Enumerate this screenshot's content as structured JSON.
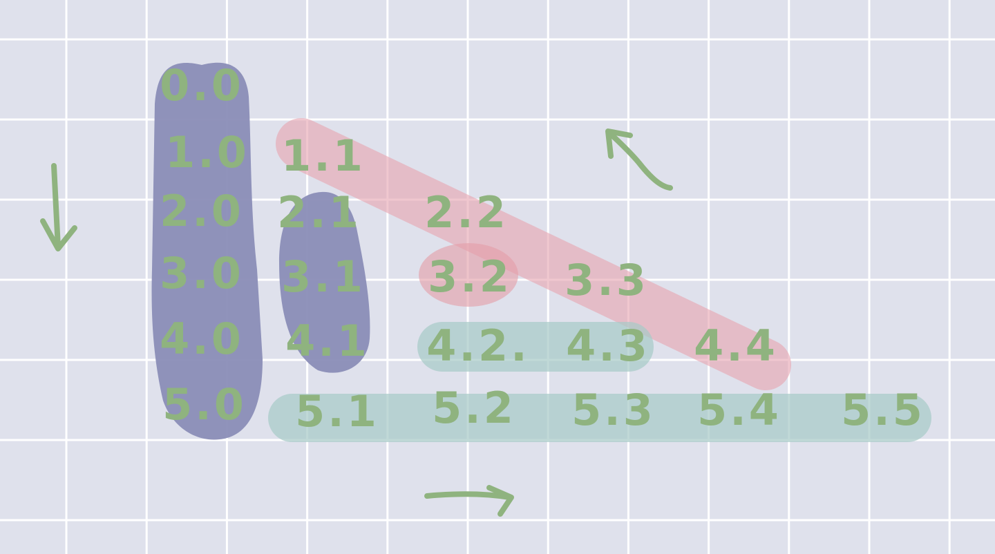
{
  "colors": {
    "background": "#dfe1ec",
    "grid": "#ffffff",
    "ink": "#8fb37f",
    "column_blob": "#8a8db7",
    "diagonal_band": "#e8a6b2",
    "row_band": "#a8cac8",
    "single_highlight": "#e49ea8"
  },
  "cells": [
    {
      "label": "0.0"
    },
    {
      "label": "1.0"
    },
    {
      "label": "1.1"
    },
    {
      "label": "2.0"
    },
    {
      "label": "2.1"
    },
    {
      "label": "2.2"
    },
    {
      "label": "3.0"
    },
    {
      "label": "3.1"
    },
    {
      "label": "3.2"
    },
    {
      "label": "3.3"
    },
    {
      "label": "4.0"
    },
    {
      "label": "4.1"
    },
    {
      "label": "4.2."
    },
    {
      "label": "4.3"
    },
    {
      "label": "4.4"
    },
    {
      "label": "5.0"
    },
    {
      "label": "5.1"
    },
    {
      "label": "5.2"
    },
    {
      "label": "5.3"
    },
    {
      "label": "5.4"
    },
    {
      "label": "5.5"
    }
  ],
  "arrows": [
    {
      "icon": "arrow-down-icon"
    },
    {
      "icon": "arrow-up-left-icon"
    },
    {
      "icon": "arrow-right-icon"
    }
  ]
}
